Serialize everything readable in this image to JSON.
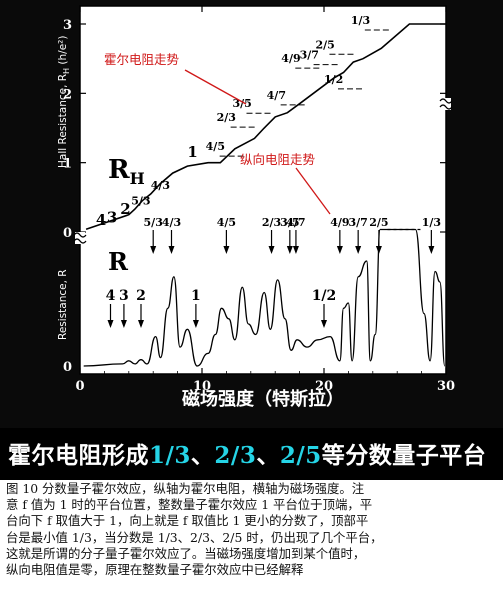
{
  "chart_data": {
    "type": "line",
    "xlabel": "磁场强度（特斯拉）",
    "ylabel_top": "Hall Resistance, R",
    "ylabel_top_sub": "H",
    "ylabel_top_unit": "(h/e²)",
    "ylabel_bottom": "Resistance, R",
    "xlim": [
      0,
      30
    ],
    "x_ticks": [
      0,
      10,
      20,
      30
    ],
    "hall_ylim": [
      0,
      3.1
    ],
    "hall_ticks": [
      0,
      1,
      2,
      3
    ],
    "label_RH_main": "R",
    "label_RH_sub": "H",
    "label_R": "R",
    "zero_label_lower": "0",
    "annot_hall": "霍尔电阻走势",
    "annot_long": "纵向电阻走势",
    "series": [
      {
        "name": "R_H",
        "x": [
          0.5,
          4,
          4.5,
          5.1,
          5.8,
          6.6,
          7.6,
          8.8,
          10.5,
          11.5,
          12.7,
          14.3,
          15.1,
          16.0,
          17.0,
          18.0,
          20.8,
          21.6,
          22.4,
          23.2,
          24.7,
          27,
          30
        ],
        "y": [
          0.04,
          0.25,
          0.33,
          0.45,
          0.55,
          0.7,
          0.85,
          0.95,
          1.0,
          1.0,
          1.2,
          1.35,
          1.5,
          1.66,
          1.72,
          1.85,
          2.22,
          2.3,
          2.45,
          2.5,
          2.65,
          3.0,
          3.0
        ]
      },
      {
        "name": "R",
        "x": [
          0.3,
          3.5,
          4.0,
          4.5,
          5.0,
          5.5,
          6.2,
          6.6,
          7.2,
          7.7,
          8.2,
          8.8,
          9.6,
          10.5,
          11.1,
          11.6,
          12.2,
          12.7,
          13.3,
          13.8,
          14.4,
          15.1,
          15.6,
          16.2,
          16.8,
          17.3,
          17.8,
          18.6,
          19.5,
          20.5,
          21.3,
          21.6,
          22.0,
          22.3,
          22.8,
          23.5,
          23.8,
          24.2,
          24.6,
          25.2,
          26.5,
          27.5,
          28.2,
          28.7,
          29.1,
          29.5,
          29.9
        ],
        "y": [
          0.0,
          0.02,
          0.05,
          0.02,
          0.06,
          0.02,
          0.28,
          0.08,
          0.55,
          0.85,
          0.18,
          0.35,
          0.0,
          0.12,
          0.3,
          0.55,
          0.45,
          0.25,
          0.75,
          0.4,
          0.3,
          0.7,
          0.35,
          0.82,
          0.45,
          0.15,
          0.25,
          0.18,
          0.25,
          0.28,
          0.05,
          0.55,
          0.6,
          0.05,
          0.85,
          1.0,
          0.05,
          0.3,
          1.3,
          1.3,
          1.3,
          1.3,
          0.5,
          0.05,
          0.9,
          0.8,
          0.0
        ]
      }
    ],
    "hall_labels": [
      {
        "text": "4",
        "x": 1.3,
        "y": 0.1
      },
      {
        "text": "3",
        "x": 2.2,
        "y": 0.14
      },
      {
        "text": "2",
        "x": 3.3,
        "y": 0.26
      },
      {
        "text": "5/3",
        "x": 4.2,
        "y": 0.4
      },
      {
        "text": "4/3",
        "x": 5.8,
        "y": 0.62
      },
      {
        "text": "1",
        "x": 8.8,
        "y": 1.08
      },
      {
        "text": "4/5",
        "x": 10.3,
        "y": 1.18
      },
      {
        "text": "2/3",
        "x": 11.2,
        "y": 1.6
      },
      {
        "text": "3/5",
        "x": 12.5,
        "y": 1.8
      },
      {
        "text": "4/7",
        "x": 15.3,
        "y": 1.92
      },
      {
        "text": "4/9",
        "x": 16.5,
        "y": 2.45
      },
      {
        "text": "3/7",
        "x": 18.0,
        "y": 2.5
      },
      {
        "text": "2/5",
        "x": 19.3,
        "y": 2.65
      },
      {
        "text": "1/2",
        "x": 20.0,
        "y": 2.15
      },
      {
        "text": "1/3",
        "x": 22.2,
        "y": 3.0
      }
    ],
    "resistance_labels": [
      {
        "text": "5/3",
        "x": 6.0
      },
      {
        "text": "4/3",
        "x": 7.5
      },
      {
        "text": "4/5",
        "x": 12.0
      },
      {
        "text": "2/3",
        "x": 15.7
      },
      {
        "text": "3/5",
        "x": 17.2
      },
      {
        "text": "4/7",
        "x": 17.7
      },
      {
        "text": "4/9",
        "x": 21.3
      },
      {
        "text": "3/7",
        "x": 22.8
      },
      {
        "text": "2/5",
        "x": 24.5
      },
      {
        "text": "1/3",
        "x": 28.8
      },
      {
        "text": "4",
        "x": 2.5
      },
      {
        "text": "3",
        "x": 3.6
      },
      {
        "text": "2",
        "x": 5.0
      },
      {
        "text": "1",
        "x": 9.5
      },
      {
        "text": "1/2",
        "x": 20.0
      }
    ]
  },
  "banner": {
    "part1": "霍尔电阻形成",
    "f1": "1/3",
    "sep1": "、",
    "f2": "2/3",
    "sep2": "、",
    "f3": "2/5",
    "part2": "等分数量子平台"
  },
  "description": {
    "lines": [
      "图 10 分数量子霍尔效应，纵轴为霍尔电阻，横轴为磁场强度。注",
      "意 f 值为 1 时的平台位置，整数量子霍尔效应 1 平台位于顶端，平",
      "台向下 f 取值大于 1，向上就是 f 取值比 1 更小的分数了，顶部平",
      "台是最小值 1/3，当分数是 1/3、2/3、2/5 时，仍出现了几个平台，",
      "这就是所谓的分子量子霍尔效应了。当磁场强度增加到某个值时，",
      "纵向电阻值是零，原理在整数量子霍尔效应中已经解释"
    ]
  },
  "colors": {
    "background": "#0a0a0a",
    "plot_bg": "#ffffff",
    "banner_text": "#ffffff",
    "banner_highlight": "#25d4e6",
    "annotation": "#d01818"
  }
}
